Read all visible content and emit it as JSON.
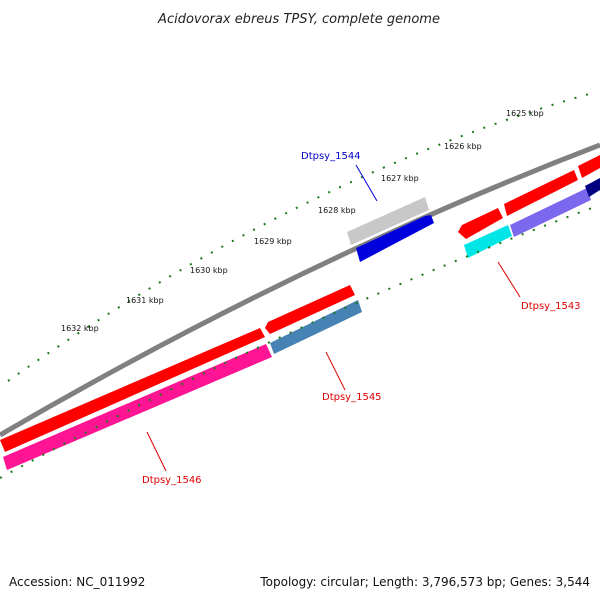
{
  "title": "Acidovorax ebreus TPSY, complete genome",
  "footer": {
    "accession": "Accession: NC_011992",
    "summary": "Topology: circular; Length: 3,796,573 bp; Genes: 3,544"
  },
  "ticks": [
    "1625 kbp",
    "1626 kbp",
    "1627 kbp",
    "1628 kbp",
    "1629 kbp",
    "1630 kbp",
    "1631 kbp",
    "1632 kbp"
  ],
  "genes": {
    "dtpsy_1544": {
      "label": "Dtpsy_1544",
      "color": "#0000cc",
      "fill": "#0000dd",
      "shade": "#c8c8c8"
    },
    "dtpsy_1543": {
      "label": "Dtpsy_1543",
      "color": "#dd0000",
      "fill": "#00e5e5"
    },
    "dtpsy_1545": {
      "label": "Dtpsy_1545",
      "color": "#dd0000",
      "fill": "#4682b4"
    },
    "dtpsy_1546": {
      "label": "Dtpsy_1546",
      "color": "#dd0000",
      "fill": "#ff1493"
    }
  },
  "colors": {
    "backbone": "#808080",
    "forward_gene": "#ff0000",
    "reverse_gene_purple": "#7b68ee",
    "reverse_gene_navy": "#000080",
    "tick": "#1a7a1a"
  }
}
